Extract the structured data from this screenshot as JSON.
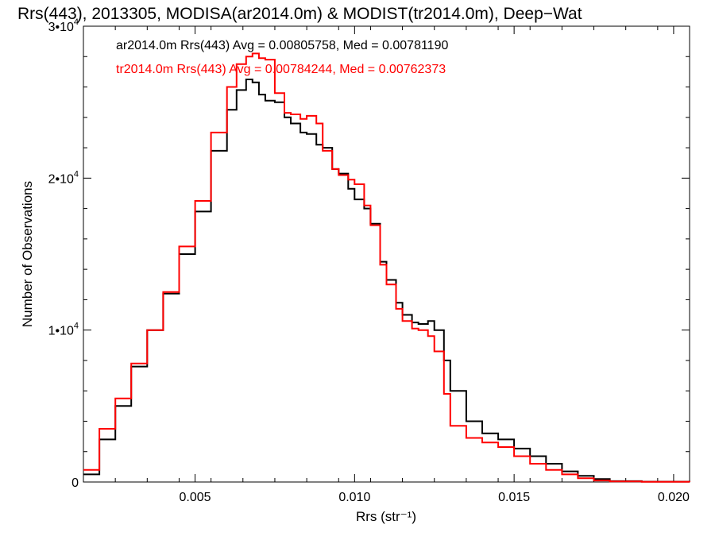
{
  "chart_data": {
    "type": "line",
    "title": "Rrs(443), 2013305, MODISA(ar2014.0m) & MODIST(tr2014.0m), Deep−Wat",
    "xlabel": "Rrs (str⁻¹)",
    "ylabel": "Number of Observations",
    "xlim": [
      0.0015,
      0.0205
    ],
    "ylim": [
      0,
      30000
    ],
    "grid": false,
    "step": true,
    "x_ticks": [
      0.005,
      0.01,
      0.015,
      0.02
    ],
    "x_tick_labels": [
      "0.005",
      "0.010",
      "0.015",
      "0.020"
    ],
    "y_ticks": [
      0,
      10000,
      20000,
      30000
    ],
    "y_tick_labels": [
      {
        "base": "0",
        "exp": ""
      },
      {
        "base": "1•10",
        "exp": "4"
      },
      {
        "base": "2•10",
        "exp": "4"
      },
      {
        "base": "3•10",
        "exp": "4"
      }
    ],
    "legend_position": "top-left",
    "series": [
      {
        "name": "ar2014.0m",
        "label": "ar2014.0m Rrs(443) Avg = 0.00805758, Med = 0.00781190",
        "color": "#000000",
        "x": [
          0.0015,
          0.002,
          0.0025,
          0.003,
          0.0035,
          0.004,
          0.0045,
          0.005,
          0.0055,
          0.006,
          0.0063,
          0.0066,
          0.0068,
          0.007,
          0.0072,
          0.0075,
          0.0078,
          0.008,
          0.0083,
          0.0085,
          0.0088,
          0.009,
          0.0093,
          0.0095,
          0.0098,
          0.01,
          0.0103,
          0.0105,
          0.0108,
          0.011,
          0.0113,
          0.0115,
          0.0118,
          0.012,
          0.0123,
          0.0125,
          0.0128,
          0.013,
          0.0135,
          0.014,
          0.0145,
          0.015,
          0.0155,
          0.016,
          0.0165,
          0.017,
          0.0175,
          0.018,
          0.019,
          0.0205
        ],
        "y": [
          500,
          2800,
          5000,
          7600,
          10000,
          12400,
          15000,
          17800,
          21800,
          24500,
          25800,
          26500,
          26300,
          25500,
          25100,
          25000,
          24000,
          23600,
          23000,
          22900,
          22200,
          22000,
          20600,
          20300,
          19300,
          18600,
          18000,
          17000,
          14500,
          13300,
          11800,
          11000,
          10500,
          10400,
          10600,
          10000,
          8000,
          6000,
          4000,
          3200,
          2800,
          2200,
          1700,
          1200,
          700,
          400,
          200,
          60,
          20,
          0
        ]
      },
      {
        "name": "tr2014.0m",
        "label": "tr2014.0m Rrs(443) Avg = 0.00784244, Med = 0.00762373",
        "color": "#ff0000",
        "x": [
          0.0015,
          0.002,
          0.0025,
          0.003,
          0.0035,
          0.004,
          0.0045,
          0.005,
          0.0055,
          0.006,
          0.0063,
          0.0066,
          0.0068,
          0.007,
          0.0072,
          0.0075,
          0.0078,
          0.008,
          0.0083,
          0.0085,
          0.0088,
          0.009,
          0.0093,
          0.0095,
          0.0098,
          0.01,
          0.0103,
          0.0105,
          0.0108,
          0.011,
          0.0113,
          0.0115,
          0.0118,
          0.012,
          0.0123,
          0.0125,
          0.0128,
          0.013,
          0.0135,
          0.014,
          0.0145,
          0.015,
          0.0155,
          0.016,
          0.0165,
          0.017,
          0.0175,
          0.018,
          0.019,
          0.0205
        ],
        "y": [
          800,
          3500,
          5500,
          7800,
          10000,
          12500,
          15500,
          18500,
          23000,
          26000,
          27500,
          28000,
          28200,
          27900,
          27800,
          25600,
          24300,
          24200,
          23900,
          24100,
          23600,
          21800,
          20600,
          20200,
          19900,
          19600,
          18200,
          16900,
          14300,
          13000,
          11400,
          10600,
          10100,
          10000,
          9600,
          8600,
          5800,
          3700,
          2900,
          2600,
          2300,
          1700,
          1200,
          800,
          500,
          250,
          100,
          40,
          10,
          0
        ]
      }
    ]
  }
}
